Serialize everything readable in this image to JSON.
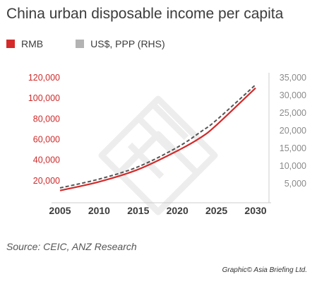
{
  "title": "China urban disposable income per capita",
  "source": "Source: CEIC, ANZ Research",
  "credit": "Graphic© Asia Briefing Ltd.",
  "colors": {
    "rmb": "#d42a2a",
    "usd": "#b3b3b3",
    "usd_line": "#555555",
    "axis": "#cccccc",
    "watermark": "#ededed"
  },
  "chart_data": {
    "type": "line",
    "title": "China urban disposable income per capita",
    "x_ticks": [
      2005,
      2010,
      2015,
      2020,
      2025,
      2030
    ],
    "xlim": [
      2005,
      2030
    ],
    "ylim_left": [
      0,
      120000
    ],
    "ylim_right": [
      0,
      35000
    ],
    "y_ticks_left": [
      "20,000",
      "40,000",
      "60,000",
      "80,000",
      "100,000",
      "120,000"
    ],
    "y_ticks_left_values": [
      20000,
      40000,
      60000,
      80000,
      100000,
      120000
    ],
    "y_ticks_right": [
      "5,000",
      "10,000",
      "15,000",
      "20,000",
      "25,000",
      "30,000",
      "35,000"
    ],
    "y_ticks_right_values": [
      5000,
      10000,
      15000,
      20000,
      25000,
      30000,
      35000
    ],
    "grid": false,
    "legend_position": "top",
    "series": [
      {
        "name": "RMB",
        "axis": "left",
        "style": "solid",
        "color": "#d42a2a",
        "x": [
          2005,
          2010,
          2015,
          2020,
          2023,
          2025,
          2030
        ],
        "values": [
          10500,
          19000,
          31000,
          49000,
          62000,
          74000,
          110000
        ]
      },
      {
        "name": "US$, PPP (RHS)",
        "axis": "right",
        "style": "dashed",
        "color": "#555555",
        "x": [
          2005,
          2010,
          2015,
          2020,
          2023,
          2025,
          2030
        ],
        "values": [
          3800,
          6300,
          9800,
          15300,
          19700,
          23000,
          33000
        ]
      }
    ]
  }
}
